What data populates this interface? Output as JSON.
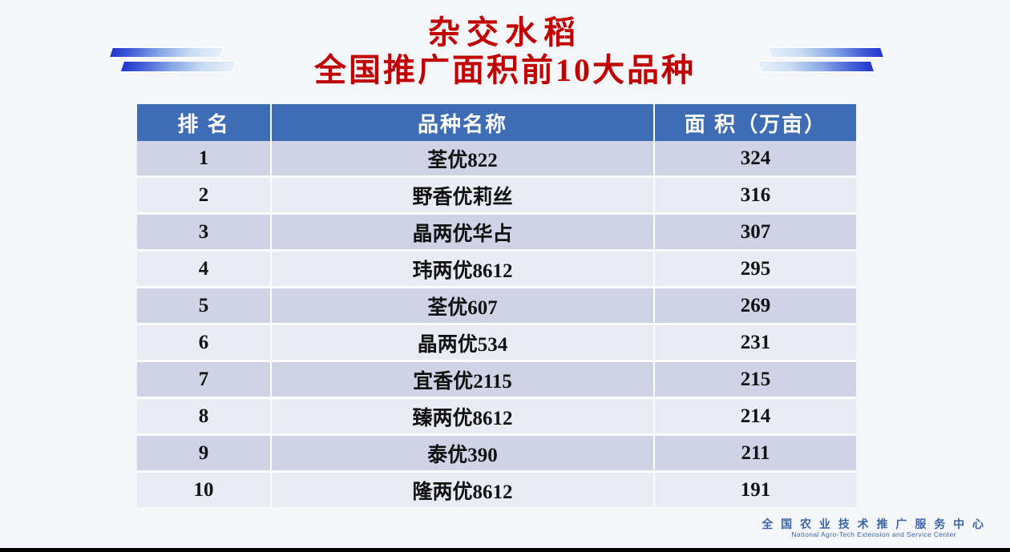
{
  "title": {
    "line1": "杂交水稻",
    "line2": "全国推广面积前10大品种"
  },
  "table": {
    "headers": [
      "排 名",
      "品种名称",
      "面 积（万亩）"
    ],
    "rows": [
      {
        "rank": "1",
        "name": "荃优822",
        "area": "324"
      },
      {
        "rank": "2",
        "name": "野香优莉丝",
        "area": "316"
      },
      {
        "rank": "3",
        "name": "晶两优华占",
        "area": "307"
      },
      {
        "rank": "4",
        "name": "玮两优8612",
        "area": "295"
      },
      {
        "rank": "5",
        "name": "荃优607",
        "area": "269"
      },
      {
        "rank": "6",
        "name": "晶两优534",
        "area": "231"
      },
      {
        "rank": "7",
        "name": "宜香优2115",
        "area": "215"
      },
      {
        "rank": "8",
        "name": "臻两优8612",
        "area": "214"
      },
      {
        "rank": "9",
        "name": "泰优390",
        "area": "211"
      },
      {
        "rank": "10",
        "name": "隆两优8612",
        "area": "191"
      }
    ]
  },
  "footer": {
    "org_cn": "全 国 农 业 技 术 推 广 服 务 中 心",
    "org_en": "National Agro-Tech Extension and Service Center"
  },
  "colors": {
    "title_red": "#c00000",
    "header_bg": "#3e6db5",
    "header_text": "#ffffff",
    "row_odd_bg": "#ced3e6",
    "row_even_bg": "#eaecf5",
    "accent_blue": "#2336cd",
    "footer_text": "#3b66a8",
    "page_bg": "#f5f6f9",
    "bottom_bar": "#000000"
  },
  "chart_data": {
    "type": "table",
    "title": "杂交水稻 全国推广面积前10大品种",
    "columns": [
      "排名",
      "品种名称",
      "面积（万亩）"
    ],
    "rows": [
      [
        1,
        "荃优822",
        324
      ],
      [
        2,
        "野香优莉丝",
        316
      ],
      [
        3,
        "晶两优华占",
        307
      ],
      [
        4,
        "玮两优8612",
        295
      ],
      [
        5,
        "荃优607",
        269
      ],
      [
        6,
        "晶两优534",
        231
      ],
      [
        7,
        "宜香优2115",
        215
      ],
      [
        8,
        "臻两优8612",
        214
      ],
      [
        9,
        "泰优390",
        211
      ],
      [
        10,
        "隆两优8612",
        191
      ]
    ],
    "unit": "万亩",
    "layout_hints": {
      "alternating_row_shading": true,
      "header_color": "#3e6db5"
    }
  }
}
